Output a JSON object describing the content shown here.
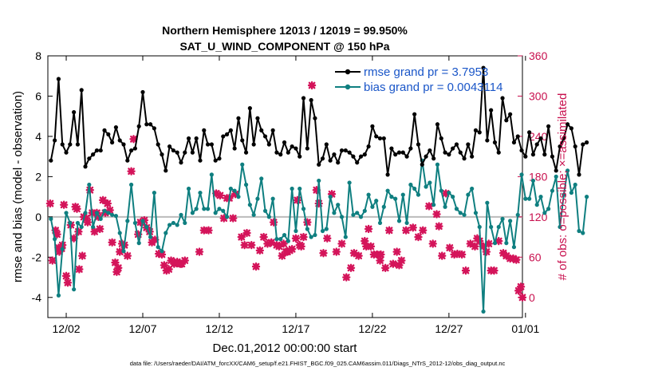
{
  "chart_data": {
    "type": "line",
    "title": [
      "Northern Hemisphere 12013 / 12019 = 99.950%",
      "SAT_U_WIND_COMPONENT @ 150 hPa"
    ],
    "xlabel": "Dec.01,2012 00:00:00 start",
    "ylabel": "rmse and bias (model - observation)",
    "ylabel_right": "# of obs: o=possible; ×=assimilated",
    "xlim": [
      0.3,
      31.3
    ],
    "ylim": [
      -5,
      8
    ],
    "ylim_right": [
      -30,
      360
    ],
    "xticks": [
      1.5,
      6.5,
      11.5,
      16.5,
      21.5,
      26.5,
      31.5
    ],
    "xtick_labels": [
      "12/02",
      "12/07",
      "12/12",
      "12/17",
      "12/22",
      "12/27",
      "01/01"
    ],
    "yticks": [
      -4,
      -2,
      0,
      2,
      4,
      6,
      8
    ],
    "yticks_right": [
      0,
      60,
      120,
      180,
      240,
      300,
      360
    ],
    "legend": [
      "rmse grand pr = 3.7953",
      "bias grand pr = 0.0043114"
    ],
    "legend_position": "top-right",
    "footer": "data file: /Users/raeder/DAI/ATM_forcXX/CAM6_setup/f.e21.FHIST_BGC.f09_025.CAM6assim.011/Diags_NTrS_2012-12/obs_diag_output.nc",
    "colors": {
      "rmse": "#000000",
      "bias": "#0f7f80",
      "obs": "#d4145a",
      "zero_line": "#bbbbbb",
      "right_axis": "#c8104e"
    },
    "series": [
      {
        "name": "rmse",
        "x0": 0.5,
        "dx": 0.25,
        "values": [
          2.8,
          3.8,
          6.85,
          3.6,
          3.2,
          3.6,
          5.2,
          3.6,
          6.3,
          2.5,
          2.9,
          3.1,
          3.3,
          3.3,
          4.3,
          4.1,
          3.7,
          4.45,
          3.8,
          3.6,
          2.8,
          3.3,
          3.4,
          4.5,
          6.2,
          4.6,
          4.6,
          4.4,
          3.6,
          3.1,
          2.3,
          3.5,
          3.3,
          3.2,
          2.7,
          3.2,
          3.9,
          3.2,
          3.9,
          2.8,
          4.3,
          3.6,
          3.6,
          2.8,
          2.9,
          4.0,
          4.1,
          4.3,
          3.4,
          4.9,
          3.8,
          3.2,
          5.4,
          3.6,
          4.9,
          4.3,
          4.0,
          3.6,
          4.3,
          3.2,
          3.1,
          3.7,
          3.2,
          3.5,
          3.4,
          3.0,
          5.9,
          3.4,
          5.8,
          4.9,
          2.6,
          2.9,
          3.6,
          2.8,
          3.1,
          2.7,
          3.3,
          3.3,
          3.2,
          3.0,
          2.7,
          3.0,
          3.1,
          3.5,
          4.5,
          4.0,
          3.9,
          3.9,
          2.1,
          3.4,
          3.1,
          3.2,
          3.2,
          3.0,
          3.4,
          5.1,
          3.6,
          2.6,
          3.0,
          3.3,
          2.9,
          4.6,
          3.9,
          3.2,
          3.1,
          3.4,
          3.6,
          3.2,
          2.9,
          3.6,
          3.0,
          4.3,
          4.2,
          7.4,
          3.8,
          5.3,
          3.7,
          3.2,
          5.9,
          4.8,
          5.1,
          3.7,
          4.0,
          3.3,
          3.0,
          4.2,
          3.1,
          3.6,
          3.9,
          3.1,
          4.5,
          3.0,
          2.3,
          3.5,
          3.9,
          4.6,
          4.4,
          3.5,
          2.1,
          3.6,
          3.7
        ]
      },
      {
        "name": "bias",
        "x0": 0.5,
        "dx": 0.25,
        "values": [
          -0.1,
          -1.1,
          -3.9,
          -1.6,
          0.2,
          -0.3,
          -3.6,
          -0.3,
          -0.5,
          0.2,
          1.6,
          -0.5,
          0.2,
          -0.1,
          0.3,
          0.2,
          0.1,
          0.05,
          -0.8,
          -1.7,
          -0.2,
          1.6,
          -0.3,
          -1.3,
          -0.2,
          -0.5,
          -1.0,
          1.2,
          -1.5,
          -1.7,
          -0.8,
          -0.4,
          -0.3,
          -0.4,
          0.1,
          -0.3,
          1.4,
          0.2,
          0.4,
          1.2,
          0.4,
          0.4,
          2.1,
          0.2,
          0.4,
          0.3,
          0.0,
          1.4,
          1.3,
          1.0,
          2.6,
          1.6,
          0.6,
          0.1,
          0.9,
          1.9,
          0.3,
          0.0,
          0.9,
          -1.1,
          -1.1,
          -0.9,
          -1.2,
          1.4,
          -0.7,
          1.4,
          0.4,
          -0.6,
          -1.0,
          -0.9,
          1.8,
          -0.7,
          -0.6,
          1.0,
          0.2,
          0.6,
          0.0,
          -1.0,
          1.7,
          0.1,
          0.2,
          0.0,
          0.3,
          1.1,
          0.5,
          0.8,
          -0.3,
          0.5,
          1.3,
          1.0,
          0.9,
          -0.2,
          1.1,
          -0.3,
          1.6,
          1.4,
          1.1,
          2.8,
          1.5,
          1.7,
          0.6,
          2.6,
          1.3,
          0.5,
          1.2,
          1.0,
          0.4,
          0.2,
          0.1,
          1.1,
          1.4,
          0.2,
          -0.5,
          -4.7,
          0.7,
          -0.5,
          -1.3,
          -0.5,
          -0.1,
          -1.3,
          -0.2,
          -1.5,
          0.1,
          2.1,
          0.9,
          0.9,
          1.8,
          0.6,
          1.0,
          0.2,
          0.4,
          1.3,
          2.0,
          -0.5,
          1.1,
          2.3,
          1.2,
          1.6,
          -0.7,
          -0.8,
          1.0
        ]
      },
      {
        "name": "obs_assimilated",
        "axis": "right",
        "marker": "x",
        "points": [
          [
            0.45,
            140
          ],
          [
            0.6,
            55
          ],
          [
            0.8,
            100
          ],
          [
            0.9,
            94
          ],
          [
            1.0,
            74
          ],
          [
            1.05,
            68
          ],
          [
            1.2,
            73
          ],
          [
            1.25,
            78
          ],
          [
            1.35,
            138
          ],
          [
            1.5,
            32
          ],
          [
            1.6,
            22
          ],
          [
            1.8,
            108
          ],
          [
            2.0,
            88
          ],
          [
            2.1,
            135
          ],
          [
            2.2,
            132
          ],
          [
            2.3,
            98
          ],
          [
            2.35,
            42
          ],
          [
            2.55,
            62
          ],
          [
            2.65,
            120
          ],
          [
            2.8,
            118
          ],
          [
            2.9,
            112
          ],
          [
            3.05,
            160
          ],
          [
            3.2,
            126
          ],
          [
            3.35,
            98
          ],
          [
            3.5,
            126
          ],
          [
            3.6,
            120
          ],
          [
            3.7,
            102
          ],
          [
            3.9,
            145
          ],
          [
            4.05,
            126
          ],
          [
            4.2,
            140
          ],
          [
            4.35,
            130
          ],
          [
            4.5,
            82
          ],
          [
            4.7,
            52
          ],
          [
            4.8,
            38
          ],
          [
            4.9,
            44
          ],
          [
            5.0,
            68
          ],
          [
            5.15,
            80
          ],
          [
            5.3,
            78
          ],
          [
            5.5,
            62
          ],
          [
            5.75,
            188
          ],
          [
            5.9,
            236
          ],
          [
            6.2,
            94
          ],
          [
            6.35,
            112
          ],
          [
            6.6,
            115
          ],
          [
            6.75,
            104
          ],
          [
            6.95,
            98
          ],
          [
            7.1,
            82
          ],
          [
            7.3,
            86
          ],
          [
            7.55,
            65
          ],
          [
            7.75,
            64
          ],
          [
            7.9,
            48
          ],
          [
            8.05,
            40
          ],
          [
            8.2,
            42
          ],
          [
            8.35,
            55
          ],
          [
            8.55,
            50
          ],
          [
            8.6,
            52
          ],
          [
            8.75,
            53
          ],
          [
            8.95,
            50
          ],
          [
            9.05,
            50
          ],
          [
            9.25,
            55
          ],
          [
            10.2,
            68
          ],
          [
            10.5,
            100
          ],
          [
            10.8,
            100
          ],
          [
            11.3,
            155
          ],
          [
            11.55,
            152
          ],
          [
            11.8,
            118
          ],
          [
            12.0,
            148
          ],
          [
            12.15,
            148
          ],
          [
            12.4,
            118
          ],
          [
            12.55,
            154
          ],
          [
            12.95,
            90
          ],
          [
            13.15,
            78
          ],
          [
            13.3,
            96
          ],
          [
            13.6,
            78
          ],
          [
            13.9,
            46
          ],
          [
            14.15,
            70
          ],
          [
            14.4,
            90
          ],
          [
            14.65,
            80
          ],
          [
            14.9,
            82
          ],
          [
            15.05,
            112
          ],
          [
            15.25,
            78
          ],
          [
            15.4,
            76
          ],
          [
            15.6,
            62
          ],
          [
            15.7,
            80
          ],
          [
            15.85,
            68
          ],
          [
            15.95,
            68
          ],
          [
            16.1,
            70
          ],
          [
            16.25,
            72
          ],
          [
            16.5,
            88
          ],
          [
            16.6,
            145
          ],
          [
            16.75,
            78
          ],
          [
            16.85,
            76
          ],
          [
            17.0,
            90
          ],
          [
            17.25,
            112
          ],
          [
            17.55,
            316
          ],
          [
            17.85,
            160
          ],
          [
            18.0,
            140
          ],
          [
            18.3,
            66
          ],
          [
            18.55,
            88
          ],
          [
            18.85,
            154
          ],
          [
            19.15,
            68
          ],
          [
            19.5,
            80
          ],
          [
            19.8,
            30
          ],
          [
            20.1,
            44
          ],
          [
            20.3,
            66
          ],
          [
            20.6,
            62
          ],
          [
            21.0,
            84
          ],
          [
            21.1,
            76
          ],
          [
            21.25,
            102
          ],
          [
            21.4,
            76
          ],
          [
            21.6,
            64
          ],
          [
            21.8,
            64
          ],
          [
            22.0,
            55
          ],
          [
            22.05,
            64
          ],
          [
            22.35,
            44
          ],
          [
            22.6,
            100
          ],
          [
            22.85,
            50
          ],
          [
            23.1,
            68
          ],
          [
            23.25,
            48
          ],
          [
            23.4,
            55
          ],
          [
            23.7,
            100
          ],
          [
            24.15,
            104
          ],
          [
            24.5,
            90
          ],
          [
            24.8,
            100
          ],
          [
            25.2,
            136
          ],
          [
            25.45,
            80
          ],
          [
            25.7,
            124
          ],
          [
            25.85,
            106
          ],
          [
            26.05,
            62
          ],
          [
            26.3,
            155
          ],
          [
            26.55,
            74
          ],
          [
            26.85,
            64
          ],
          [
            27.05,
            65
          ],
          [
            27.35,
            64
          ],
          [
            27.6,
            40
          ],
          [
            27.9,
            80
          ],
          [
            28.2,
            76
          ],
          [
            28.35,
            88
          ],
          [
            28.5,
            84
          ],
          [
            28.75,
            76
          ],
          [
            28.95,
            68
          ],
          [
            29.1,
            80
          ],
          [
            29.25,
            40
          ],
          [
            29.45,
            40
          ],
          [
            29.75,
            84
          ],
          [
            30.05,
            66
          ],
          [
            30.25,
            62
          ],
          [
            30.5,
            58
          ],
          [
            30.7,
            58
          ],
          [
            30.9,
            56
          ],
          [
            31.05,
            10
          ],
          [
            31.2,
            16
          ],
          [
            31.3,
            0
          ]
        ]
      }
    ]
  }
}
